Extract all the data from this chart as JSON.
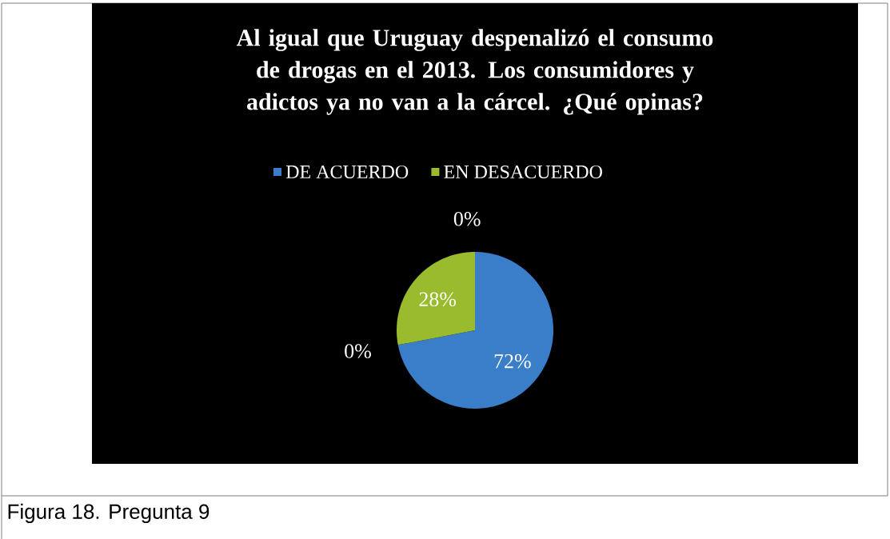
{
  "chart_data": {
    "type": "pie",
    "title": "Al igual que Uruguay despenalizó el consumo de drogas en el 2013. Los consumidores y adictos ya no van a la cárcel. ¿Qué opinas?",
    "categories": [
      "DE ACUERDO",
      null,
      "EN DESACUERDO",
      null
    ],
    "values": [
      72,
      0,
      28,
      0
    ],
    "colors": [
      "#3a7dc9",
      null,
      "#9bbb2e",
      null
    ],
    "value_labels": [
      "72%",
      "0%",
      "28%",
      "0%"
    ],
    "legend": "top",
    "annotations": [
      "Figura 18. Pregunta 9"
    ]
  }
}
